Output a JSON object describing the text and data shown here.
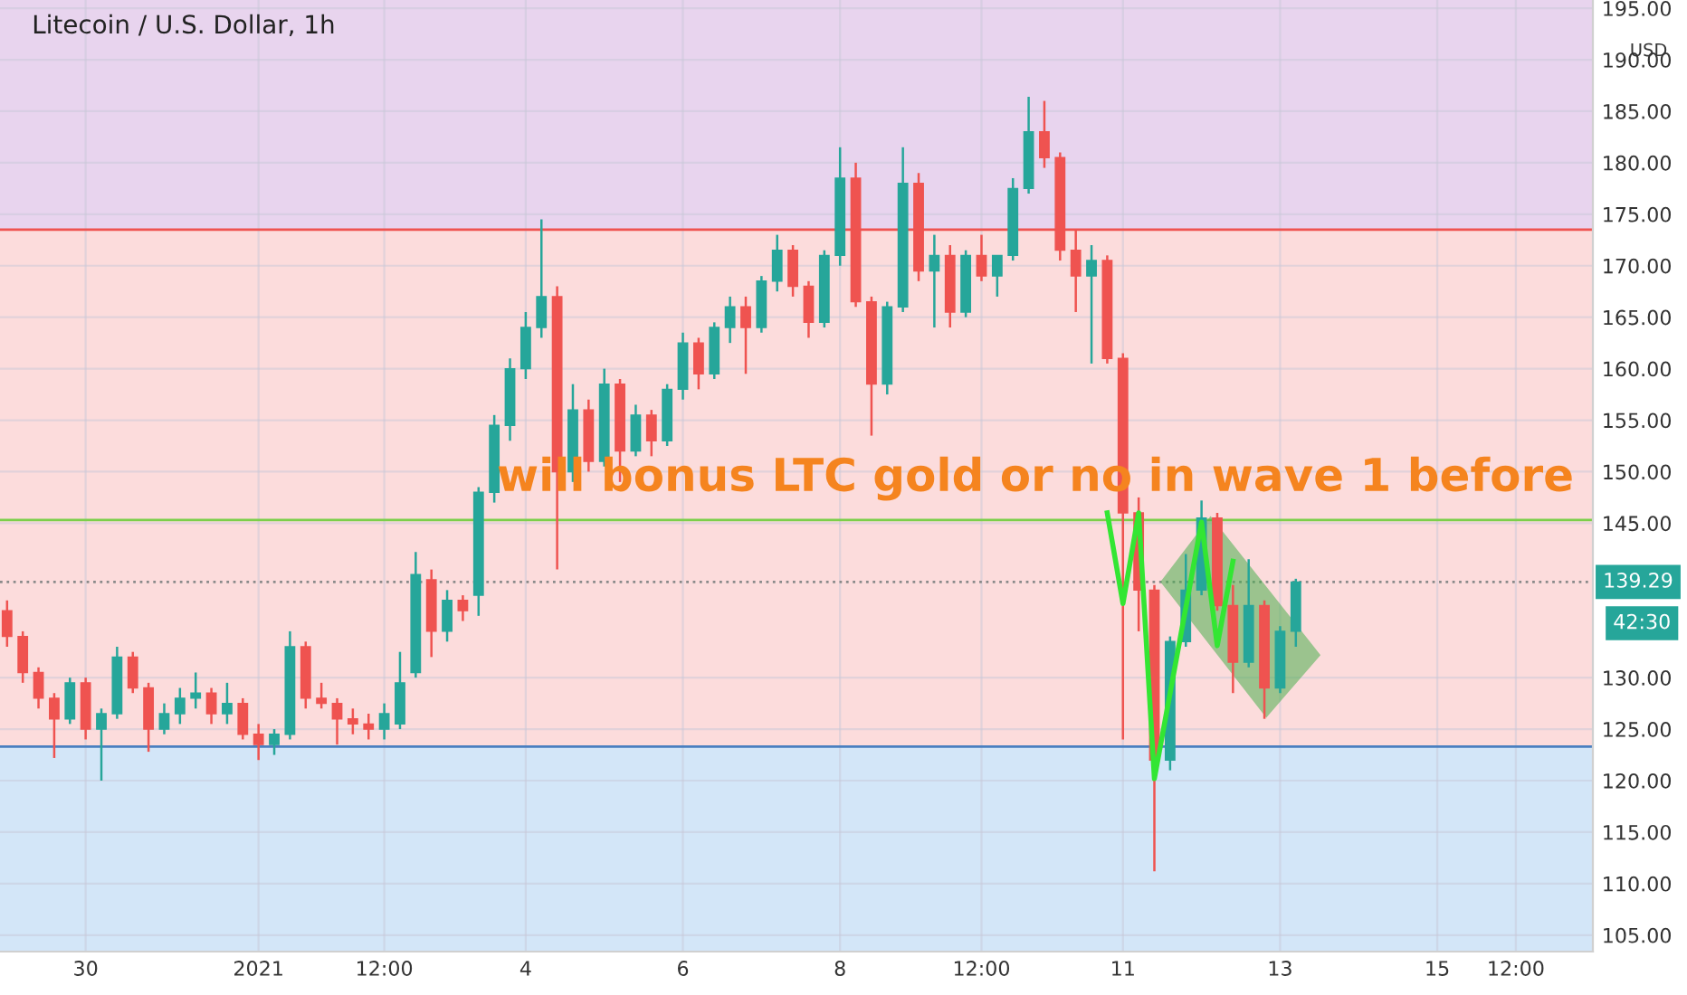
{
  "chart_data": {
    "type": "candlestick",
    "title": "Litecoin / U.S. Dollar, 1h",
    "ylabel": "USD",
    "categories": [
      null,
      null,
      null,
      null,
      null,
      "30",
      null,
      null,
      null,
      null,
      null,
      null,
      null,
      null,
      null,
      null,
      "2021",
      null,
      null,
      null,
      null,
      null,
      null,
      null,
      "12:00",
      null,
      null,
      null,
      null,
      null,
      null,
      null,
      null,
      "4",
      null,
      null,
      null,
      null,
      null,
      null,
      null,
      null,
      null,
      "6",
      null,
      null,
      null,
      null,
      null,
      null,
      null,
      null,
      null,
      "8",
      null,
      null,
      null,
      null,
      null,
      null,
      null,
      null,
      "12:00",
      null,
      null,
      null,
      null,
      null,
      null,
      null,
      null,
      "11",
      null,
      null,
      null,
      null,
      null,
      null,
      null,
      null,
      null,
      "13",
      null,
      null,
      null,
      null,
      null,
      null,
      null,
      null,
      null,
      "15",
      null,
      null,
      null,
      null,
      "12:00",
      null,
      null,
      null,
      null
    ],
    "ohlc": [
      [
        136.5,
        137.5,
        133,
        134
      ],
      [
        134,
        134.5,
        129.5,
        130.5
      ],
      [
        130.5,
        131,
        127,
        128
      ],
      [
        128,
        128.5,
        122.2,
        126
      ],
      [
        126,
        130,
        125.5,
        129.5
      ],
      [
        129.5,
        130,
        124,
        125
      ],
      [
        125,
        127,
        120,
        126.5
      ],
      [
        126.5,
        133,
        126,
        132
      ],
      [
        132,
        132.5,
        128.5,
        129
      ],
      [
        129,
        129.5,
        122.8,
        125
      ],
      [
        125,
        127.5,
        124.5,
        126.5
      ],
      [
        126.5,
        129,
        125.5,
        128
      ],
      [
        128,
        130.5,
        127,
        128.5
      ],
      [
        128.5,
        129,
        125.5,
        126.5
      ],
      [
        126.5,
        129.5,
        125.5,
        127.5
      ],
      [
        127.5,
        128,
        124,
        124.5
      ],
      [
        124.5,
        125.5,
        122,
        123.5
      ],
      [
        123.5,
        125,
        122.5,
        124.5
      ],
      [
        124.5,
        134.5,
        124,
        133
      ],
      [
        133,
        133.5,
        127,
        128
      ],
      [
        128,
        129.5,
        127,
        127.5
      ],
      [
        127.5,
        128,
        123.5,
        126
      ],
      [
        126,
        127,
        124.5,
        125.5
      ],
      [
        125.5,
        126.5,
        124,
        125
      ],
      [
        125,
        127.5,
        124,
        126.5
      ],
      [
        125.5,
        132.5,
        125,
        129.5
      ],
      [
        130.5,
        142.2,
        130,
        140
      ],
      [
        139.5,
        140.5,
        132,
        134.5
      ],
      [
        134.5,
        138.5,
        133.5,
        137.5
      ],
      [
        137.5,
        138,
        135.5,
        136.5
      ],
      [
        138,
        148.5,
        136,
        148
      ],
      [
        148,
        155.5,
        147,
        154.5
      ],
      [
        154.5,
        161,
        153,
        160
      ],
      [
        160,
        165.5,
        159,
        164
      ],
      [
        164,
        174.5,
        163,
        167
      ],
      [
        167,
        168,
        140.5,
        150
      ],
      [
        150,
        158.5,
        149,
        156
      ],
      [
        156,
        157,
        150,
        151
      ],
      [
        151,
        160,
        150.5,
        158.5
      ],
      [
        158.5,
        159,
        149,
        152
      ],
      [
        152,
        156.5,
        151.5,
        155.5
      ],
      [
        155.5,
        156,
        151.5,
        153
      ],
      [
        153,
        158.5,
        152.5,
        158
      ],
      [
        158,
        163.5,
        157,
        162.5
      ],
      [
        162.5,
        163,
        158,
        159.5
      ],
      [
        159.5,
        164.5,
        159,
        164
      ],
      [
        164,
        167,
        162.5,
        166
      ],
      [
        166,
        167,
        159.5,
        164
      ],
      [
        164,
        169,
        163.5,
        168.5
      ],
      [
        168.5,
        173,
        167.5,
        171.5
      ],
      [
        171.5,
        172,
        167,
        168
      ],
      [
        168,
        168.5,
        163,
        164.5
      ],
      [
        164.5,
        171.5,
        164,
        171
      ],
      [
        171,
        181.5,
        170,
        178.5
      ],
      [
        178.5,
        180,
        166,
        166.5
      ],
      [
        166.5,
        167,
        153.5,
        158.5
      ],
      [
        158.5,
        166.5,
        157.5,
        166
      ],
      [
        166,
        181.5,
        165.5,
        178
      ],
      [
        178,
        179,
        168.5,
        169.5
      ],
      [
        169.5,
        173,
        164,
        171
      ],
      [
        171,
        172,
        164,
        165.5
      ],
      [
        165.5,
        171.5,
        165,
        171
      ],
      [
        171,
        173,
        168.5,
        169
      ],
      [
        169,
        171,
        167,
        171
      ],
      [
        171,
        178.5,
        170.5,
        177.5
      ],
      [
        177.5,
        186.4,
        177,
        183
      ],
      [
        183,
        186,
        179.5,
        180.5
      ],
      [
        180.5,
        181,
        170.5,
        171.5
      ],
      [
        171.5,
        173.5,
        165.5,
        169
      ],
      [
        169,
        172,
        160.5,
        170.5
      ],
      [
        170.5,
        171,
        160.5,
        161
      ],
      [
        161,
        161.5,
        124,
        146
      ],
      [
        146,
        147.5,
        134.5,
        138.5
      ],
      [
        138.5,
        139,
        111.2,
        122
      ],
      [
        122,
        134,
        121,
        133.5
      ],
      [
        133.5,
        142,
        133,
        138.5
      ],
      [
        138.5,
        147.2,
        138,
        145.5
      ],
      [
        145.5,
        146,
        136.5,
        137
      ],
      [
        137,
        139,
        128.5,
        131.5
      ],
      [
        131.5,
        141.5,
        131,
        137
      ],
      [
        137,
        137.5,
        126,
        129
      ],
      [
        129,
        135,
        128.5,
        134.5
      ],
      [
        134.5,
        139.6,
        133,
        139.29
      ],
      null,
      null,
      null,
      null,
      null,
      null,
      null,
      null,
      null,
      null,
      null,
      null,
      null,
      null,
      null,
      null,
      null,
      null
    ],
    "series": [
      {
        "type": "line",
        "color": "#33e633",
        "values": [
          null,
          null,
          null,
          null,
          null,
          null,
          null,
          null,
          null,
          null,
          null,
          null,
          null,
          null,
          null,
          null,
          null,
          null,
          null,
          null,
          null,
          null,
          null,
          null,
          null,
          null,
          null,
          null,
          null,
          null,
          null,
          null,
          null,
          null,
          null,
          null,
          null,
          null,
          null,
          null,
          null,
          null,
          null,
          null,
          null,
          null,
          null,
          null,
          null,
          null,
          null,
          null,
          null,
          null,
          null,
          null,
          null,
          null,
          null,
          null,
          null,
          null,
          null,
          null,
          null,
          null,
          null,
          null,
          null,
          null,
          146,
          137.2,
          146,
          120.2,
          null,
          null,
          145.1,
          133.1,
          141.3,
          null,
          null,
          null,
          null,
          null,
          null,
          null,
          null,
          null,
          null,
          null,
          null,
          null,
          null,
          null,
          null,
          null,
          null,
          null,
          null,
          null,
          null
        ]
      }
    ],
    "bands": [
      {
        "axis": "y",
        "from": 173.5,
        "to": 195.8,
        "color": "#e8d4ee"
      },
      {
        "axis": "y",
        "from": 123.3,
        "to": 173.5,
        "color": "#fcdcdc"
      },
      {
        "axis": "y",
        "from": 103.4,
        "to": 123.3,
        "color": "#d3e6f8"
      }
    ],
    "ref_lines": [
      {
        "axis": "y",
        "value": 173.5,
        "color": "#ef5350",
        "line_style": "solid"
      },
      {
        "axis": "y",
        "value": 145.3,
        "color": "#7ccf4a",
        "line_style": "solid"
      },
      {
        "axis": "y",
        "value": 123.3,
        "color": "#4a7fc0",
        "line_style": "solid"
      },
      {
        "axis": "y",
        "value": 139.29,
        "label": "139.29",
        "color": "#8a8a8a",
        "line_style": "dotted"
      }
    ],
    "annotations": [
      "will bonus LTC gold or no in wave 1 before",
      "42:30"
    ],
    "ylim": [
      103.4,
      195.8
    ],
    "yticks": [
      {
        "value": 105,
        "label": "105.00"
      },
      {
        "value": 110,
        "label": "110.00"
      },
      {
        "value": 115,
        "label": "115.00"
      },
      {
        "value": 120,
        "label": "120.00"
      },
      {
        "value": 125,
        "label": "125.00"
      },
      {
        "value": 130,
        "label": "130.00"
      },
      {
        "value": 145,
        "label": "145.00"
      },
      {
        "value": 150,
        "label": "150.00"
      },
      {
        "value": 155,
        "label": "155.00"
      },
      {
        "value": 160,
        "label": "160.00"
      },
      {
        "value": 165,
        "label": "165.00"
      },
      {
        "value": 170,
        "label": "170.00"
      },
      {
        "value": 175,
        "label": "175.00"
      },
      {
        "value": 180,
        "label": "180.00"
      },
      {
        "value": 185,
        "label": "185.00"
      },
      {
        "value": 190,
        "label": "190.00"
      },
      {
        "value": 195,
        "label": "195.00"
      }
    ],
    "grid": true,
    "legend": false
  }
}
